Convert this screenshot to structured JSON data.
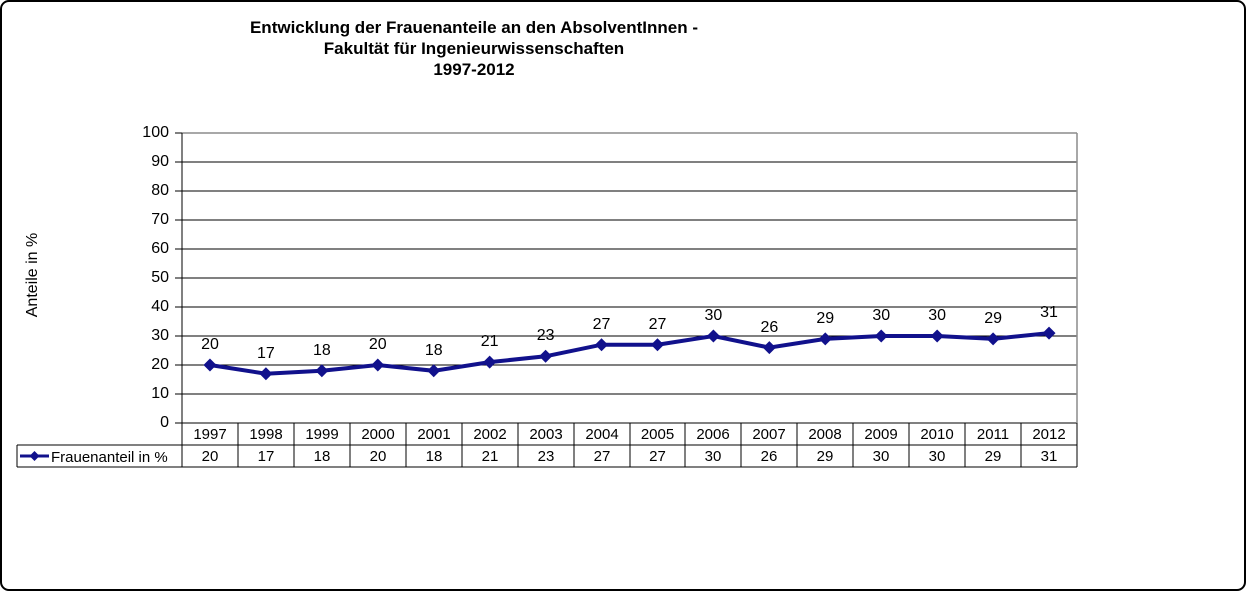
{
  "chart_data": {
    "type": "line",
    "title": "Entwicklung der Frauenanteile an den AbsolventInnen -\nFakultät für Ingenieurwissenschaften\n1997-2012",
    "ylabel": "Anteile in %",
    "xlabel": "",
    "categories": [
      "1997",
      "1998",
      "1999",
      "2000",
      "2001",
      "2002",
      "2003",
      "2004",
      "2005",
      "2006",
      "2007",
      "2008",
      "2009",
      "2010",
      "2011",
      "2012"
    ],
    "series": [
      {
        "name": "Frauenanteil in %",
        "values": [
          20,
          17,
          18,
          20,
          18,
          21,
          23,
          27,
          27,
          30,
          26,
          29,
          30,
          30,
          29,
          31
        ]
      }
    ],
    "ylim": [
      0,
      100
    ],
    "yticks": [
      0,
      10,
      20,
      30,
      40,
      50,
      60,
      70,
      80,
      90,
      100
    ],
    "grid": true,
    "data_labels": true,
    "legend_position": "bottom-table",
    "marker": "diamond",
    "colors": {
      "series_line": "#11118C",
      "gridline": "#000000",
      "plot_border": "#8C8C8C",
      "axis": "#000000",
      "text": "#000000",
      "background": "#ffffff"
    }
  }
}
